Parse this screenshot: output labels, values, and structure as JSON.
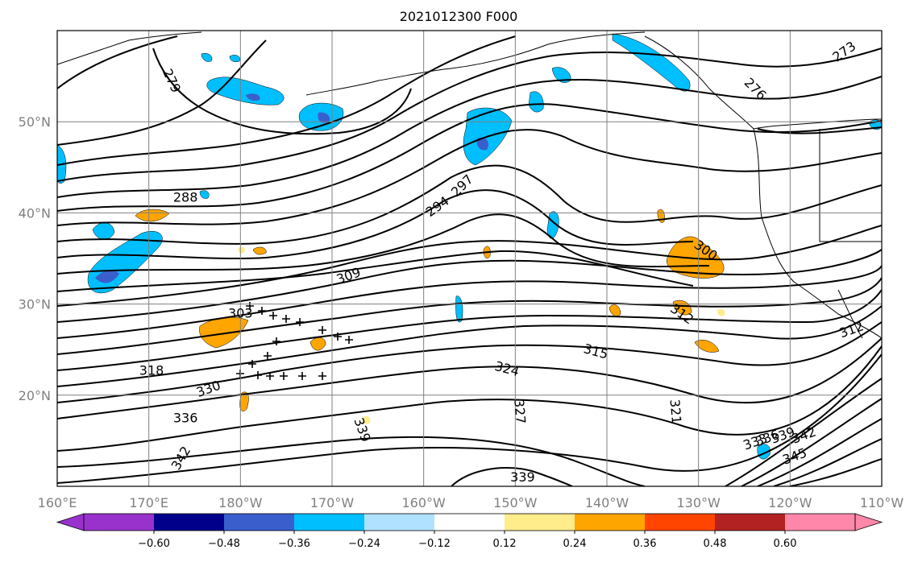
{
  "chart_data": {
    "type": "contour",
    "title": "2021012300 F000",
    "projection": "PlateCarree (160E to 110W, ~10N to ~60N)",
    "xaxis": {
      "range_lon": [
        160,
        250
      ],
      "ticks": [
        {
          "lon": 160,
          "label": "160°E"
        },
        {
          "lon": 170,
          "label": "170°E"
        },
        {
          "lon": 180,
          "label": "180°W"
        },
        {
          "lon": 190,
          "label": "170°W"
        },
        {
          "lon": 200,
          "label": "160°W"
        },
        {
          "lon": 210,
          "label": "150°W"
        },
        {
          "lon": 220,
          "label": "140°W"
        },
        {
          "lon": 230,
          "label": "130°W"
        },
        {
          "lon": 240,
          "label": "120°W"
        },
        {
          "lon": 250,
          "label": "110°W"
        }
      ]
    },
    "yaxis": {
      "range_lat": [
        10,
        60
      ],
      "ticks": [
        {
          "lat": 20,
          "label": "20°N"
        },
        {
          "lat": 30,
          "label": "30°N"
        },
        {
          "lat": 40,
          "label": "40°N"
        },
        {
          "lat": 50,
          "label": "50°N"
        }
      ]
    },
    "grid": true,
    "contour_lines": {
      "levels_labeled": [
        "279",
        "288",
        "294",
        "297",
        "300",
        "303",
        "309",
        "312",
        "315",
        "318",
        "321",
        "324",
        "327",
        "330",
        "333",
        "336",
        "339",
        "342",
        "345",
        "273",
        "276"
      ],
      "labels": [
        {
          "text": "279",
          "lon": 172.5,
          "lat": 54.5,
          "rot": 65
        },
        {
          "text": "288",
          "lon": 174.0,
          "lat": 41.7,
          "rot": 0
        },
        {
          "text": "294",
          "lon": 201.5,
          "lat": 40.7,
          "rot": -35
        },
        {
          "text": "297",
          "lon": 204.2,
          "lat": 43.0,
          "rot": -45
        },
        {
          "text": "300",
          "lon": 230.8,
          "lat": 35.9,
          "rot": 35
        },
        {
          "text": "303",
          "lon": 180.0,
          "lat": 29.0,
          "rot": 0
        },
        {
          "text": "309",
          "lon": 191.8,
          "lat": 33.1,
          "rot": -20
        },
        {
          "text": "312",
          "lon": 228.2,
          "lat": 28.9,
          "rot": 35
        },
        {
          "text": "315",
          "lon": 218.8,
          "lat": 24.8,
          "rot": 15
        },
        {
          "text": "318",
          "lon": 170.3,
          "lat": 22.7,
          "rot": 0
        },
        {
          "text": "324",
          "lon": 209.1,
          "lat": 22.9,
          "rot": 15
        },
        {
          "text": "327",
          "lon": 210.5,
          "lat": 18.2,
          "rot": 85
        },
        {
          "text": "330",
          "lon": 176.5,
          "lat": 20.7,
          "rot": -20
        },
        {
          "text": "321",
          "lon": 227.5,
          "lat": 18.2,
          "rot": 85
        },
        {
          "text": "336",
          "lon": 174.0,
          "lat": 17.5,
          "rot": 0
        },
        {
          "text": "339",
          "lon": 193.3,
          "lat": 16.2,
          "rot": 70
        },
        {
          "text": "342",
          "lon": 173.5,
          "lat": 13.1,
          "rot": -60
        },
        {
          "text": "339",
          "lon": 210.8,
          "lat": 11.0,
          "rot": 0
        },
        {
          "text": "333",
          "lon": 236.2,
          "lat": 14.9,
          "rot": -20
        },
        {
          "text": "336",
          "lon": 237.5,
          "lat": 15.3,
          "rot": -20
        },
        {
          "text": "339",
          "lon": 239.2,
          "lat": 15.6,
          "rot": -20
        },
        {
          "text": "342",
          "lon": 241.5,
          "lat": 15.6,
          "rot": -20
        },
        {
          "text": "345",
          "lon": 240.5,
          "lat": 13.3,
          "rot": -20
        },
        {
          "text": "273",
          "lon": 245.9,
          "lat": 57.7,
          "rot": -35
        },
        {
          "text": "276",
          "lon": 236.2,
          "lat": 53.6,
          "rot": 45
        },
        {
          "text": "312",
          "lon": 246.7,
          "lat": 27.2,
          "rot": -20
        }
      ]
    },
    "filled_contours": {
      "colorbar_levels": [
        -0.6,
        -0.48,
        -0.36,
        -0.24,
        -0.12,
        0.12,
        0.24,
        0.36,
        0.48,
        0.6
      ],
      "colorbar_labels": [
        "−0.60",
        "−0.48",
        "−0.36",
        "−0.24",
        "−0.12",
        "0.12",
        "0.24",
        "0.36",
        "0.48",
        "0.60"
      ],
      "colors": [
        "#9932cc",
        "#00008b",
        "#3a5fcd",
        "#00bfff",
        "#b0e2ff",
        "#ffffff",
        "#ffec8b",
        "#ffa500",
        "#ff4500",
        "#b22222",
        "#ff88aa"
      ],
      "extend": "both"
    },
    "markers": {
      "symbol": "+",
      "color": "#000000"
    }
  }
}
